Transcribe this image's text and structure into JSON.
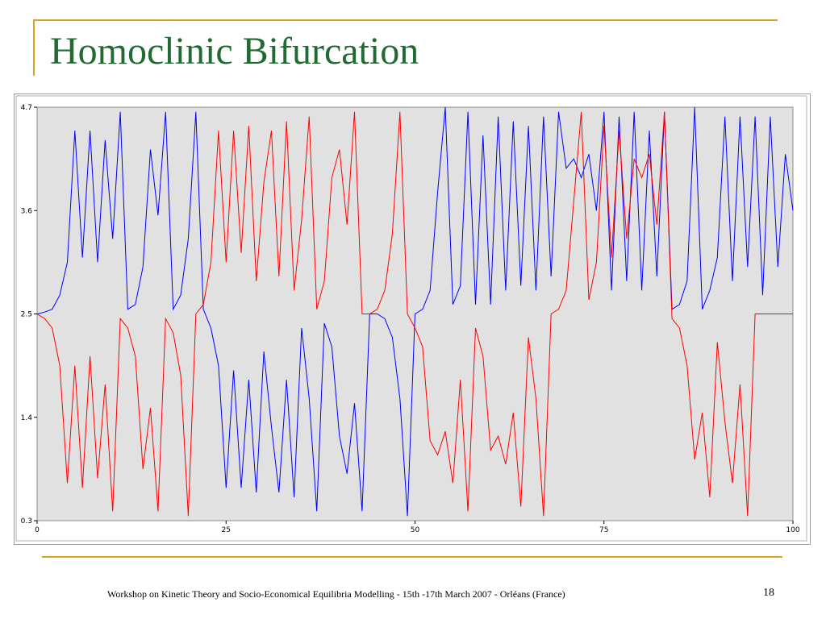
{
  "slide": {
    "title": "Homoclinic Bifurcation",
    "footer": "Workshop on Kinetic Theory and Socio-Economical Equilibria Modelling - 15th -17th March 2007 - Orléans (France)",
    "page_number": "18"
  },
  "colors": {
    "accent": "#d9a520",
    "title": "#1f6b33",
    "plot_bg": "#e1e1e1",
    "blue": "#0000ff",
    "red": "#ff0000"
  },
  "chart_data": {
    "type": "line",
    "title": "",
    "xlabel": "",
    "ylabel": "",
    "xlim": [
      0,
      100
    ],
    "ylim": [
      0.3,
      4.7
    ],
    "xticks": [
      "0",
      "25",
      "50",
      "75",
      "100"
    ],
    "yticks": [
      "4.7",
      "3.6",
      "2.5",
      "1.4",
      "0.3"
    ],
    "grid": false,
    "x": [
      0,
      1,
      2,
      3,
      4,
      5,
      6,
      7,
      8,
      9,
      10,
      11,
      12,
      13,
      14,
      15,
      16,
      17,
      18,
      19,
      20,
      21,
      22,
      23,
      24,
      25,
      26,
      27,
      28,
      29,
      30,
      31,
      32,
      33,
      34,
      35,
      36,
      37,
      38,
      39,
      40,
      41,
      42,
      43,
      44,
      45,
      46,
      47,
      48,
      49,
      50,
      51,
      52,
      53,
      54,
      55,
      56,
      57,
      58,
      59,
      60,
      61,
      62,
      63,
      64,
      65,
      66,
      67,
      68,
      69,
      70,
      71,
      72,
      73,
      74,
      75,
      76,
      77,
      78,
      79,
      80,
      81,
      82,
      83,
      84,
      85,
      86,
      87,
      88,
      89,
      90,
      91,
      92,
      93,
      94,
      95,
      96,
      97,
      98,
      99,
      100
    ],
    "series": [
      {
        "color": "#0000ff",
        "values": [
          2.5,
          2.52,
          2.55,
          2.7,
          3.05,
          4.45,
          3.1,
          4.45,
          3.05,
          4.35,
          3.3,
          4.65,
          2.55,
          2.6,
          3.0,
          4.25,
          3.55,
          4.65,
          2.55,
          2.7,
          3.3,
          4.65,
          2.55,
          2.35,
          1.95,
          0.65,
          1.9,
          0.65,
          1.8,
          0.6,
          2.1,
          1.3,
          0.6,
          1.8,
          0.55,
          2.35,
          1.6,
          0.4,
          2.4,
          2.15,
          1.2,
          0.8,
          1.55,
          0.4,
          2.5,
          2.5,
          2.45,
          2.25,
          1.6,
          0.35,
          2.5,
          2.55,
          2.75,
          3.8,
          4.7,
          2.6,
          2.8,
          4.65,
          2.6,
          4.4,
          2.6,
          4.6,
          2.75,
          4.55,
          2.8,
          4.5,
          2.75,
          4.6,
          2.9,
          4.65,
          4.05,
          4.15,
          3.95,
          4.2,
          3.6,
          4.65,
          2.75,
          4.6,
          2.85,
          4.65,
          2.75,
          4.45,
          2.9,
          4.65,
          2.55,
          2.6,
          2.85,
          4.7,
          2.55,
          2.75,
          3.1,
          4.6,
          2.85,
          4.6,
          3.0,
          4.6,
          2.7,
          4.6,
          3.0,
          4.2,
          3.6
        ]
      },
      {
        "color": "#ff0000",
        "values": [
          2.5,
          2.45,
          2.35,
          1.95,
          0.7,
          1.95,
          0.65,
          2.05,
          0.75,
          1.75,
          0.4,
          2.45,
          2.35,
          2.05,
          0.85,
          1.5,
          0.4,
          2.45,
          2.3,
          1.85,
          0.35,
          2.5,
          2.6,
          3.05,
          4.45,
          3.05,
          4.45,
          3.15,
          4.5,
          2.85,
          3.9,
          4.45,
          2.9,
          4.55,
          2.75,
          3.5,
          4.6,
          2.55,
          2.85,
          3.95,
          4.25,
          3.45,
          4.65,
          2.5,
          2.5,
          2.55,
          2.75,
          3.35,
          4.65,
          2.5,
          2.35,
          2.15,
          1.15,
          1.0,
          1.25,
          0.7,
          1.8,
          0.4,
          2.35,
          2.05,
          1.05,
          1.2,
          0.9,
          1.45,
          0.45,
          2.25,
          1.6,
          0.35,
          2.5,
          2.55,
          2.75,
          3.7,
          4.65,
          2.65,
          3.05,
          4.5,
          3.1,
          4.45,
          3.3,
          4.15,
          3.95,
          4.2,
          3.45,
          4.65,
          2.45,
          2.35,
          1.95,
          0.95,
          1.45,
          0.55,
          2.2,
          1.35,
          0.7,
          1.75,
          0.35,
          2.5,
          2.5,
          2.5,
          2.5,
          2.5,
          2.5
        ]
      }
    ]
  }
}
